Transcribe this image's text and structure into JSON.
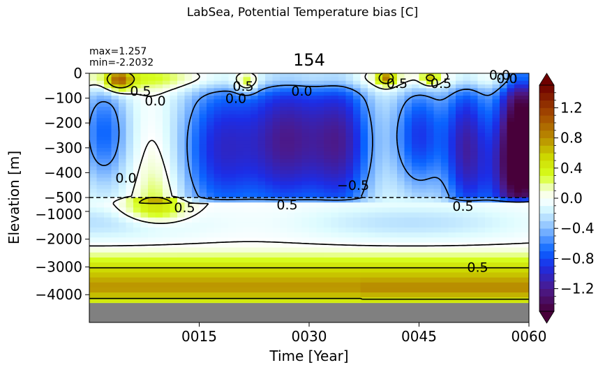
{
  "figure": {
    "suptitle": "LabSea, Potential Temperature bias [C]",
    "title": "154",
    "stats": {
      "max": "max=1.257",
      "min": "min=-2.2032"
    }
  },
  "chart_data": {
    "type": "heatmap",
    "title": "154",
    "xlabel": "Time [Year]",
    "ylabel": "Elevation [m]",
    "xlim": [
      0,
      60
    ],
    "x_ticks": [
      "0015",
      "0030",
      "0045",
      "0060"
    ],
    "x_tick_values": [
      15,
      30,
      45,
      60
    ],
    "y_ticks_upper": [
      "0",
      "−100",
      "−200",
      "−300",
      "−400",
      "−500"
    ],
    "y_ticks_lower": [
      "−1000",
      "−2000",
      "−3000",
      "−4000"
    ],
    "upper_ylim": [
      -500,
      0
    ],
    "lower_ylim": [
      -5000,
      -500
    ],
    "ocean_bottom_depth": -4300,
    "colorbar": {
      "range": [
        -1.5,
        1.5
      ],
      "ticks": [
        "1.2",
        "0.8",
        "0.4",
        "0.0",
        "−0.4",
        "−0.8",
        "−1.2"
      ],
      "tick_values": [
        1.2,
        0.8,
        0.4,
        0.0,
        -0.4,
        -0.8,
        -1.2
      ],
      "extend": "both"
    },
    "contour_labels": [
      {
        "text": "0.5",
        "t": 7,
        "z": -70
      },
      {
        "text": "0.0",
        "t": 9,
        "z": -110
      },
      {
        "text": "0.5",
        "t": 21,
        "z": -50
      },
      {
        "text": "0.0",
        "t": 20,
        "z": -100
      },
      {
        "text": "0.0",
        "t": 29,
        "z": -70
      },
      {
        "text": "0.5",
        "t": 42,
        "z": -40
      },
      {
        "text": "0.5",
        "t": 48,
        "z": -40
      },
      {
        "text": "0.0",
        "t": 57,
        "z": -20
      },
      {
        "text": "0.0",
        "t": 56,
        "z": -6
      },
      {
        "text": "0.0",
        "t": 5,
        "z": -420
      },
      {
        "text": "−0.5",
        "t": 36,
        "z": -450
      },
      {
        "text": "0.5",
        "t": 27,
        "z": -750
      },
      {
        "text": "0.5",
        "t": 13,
        "z": -850
      },
      {
        "text": "0.5",
        "t": 51,
        "z": -800
      },
      {
        "text": "0.5",
        "t": 53,
        "z": -3000
      }
    ],
    "dashed_line_z": -500
  }
}
